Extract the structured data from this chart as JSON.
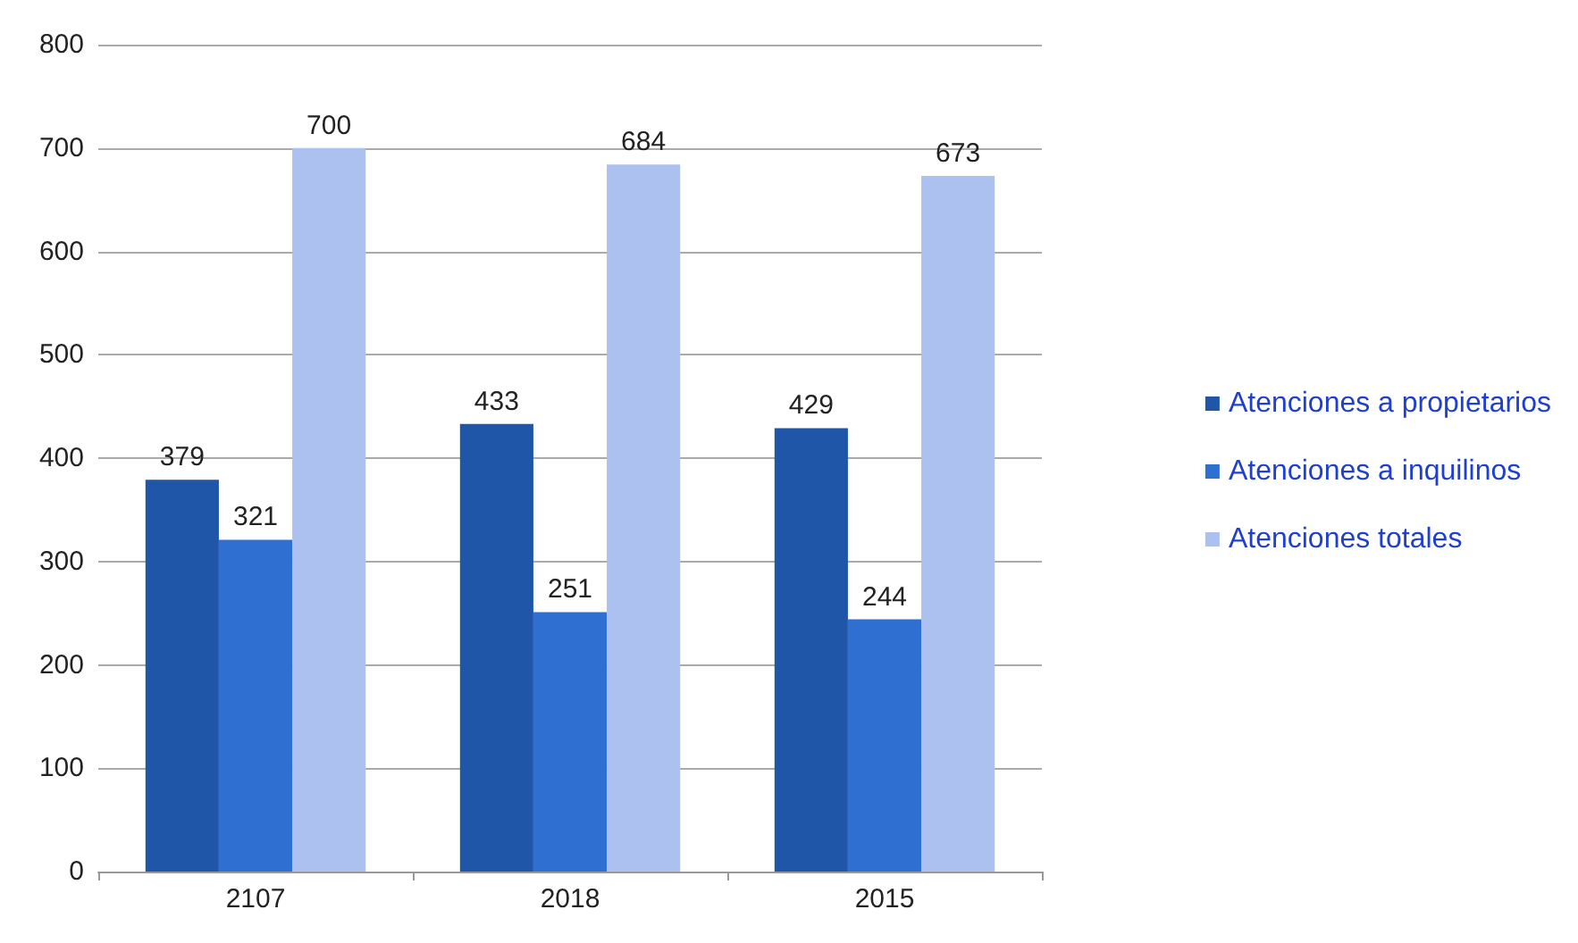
{
  "chart_data": {
    "type": "bar",
    "categories": [
      "2107",
      "2018",
      "2015"
    ],
    "series": [
      {
        "name": "Atenciones a propietarios",
        "color": "#1f56a8",
        "values": [
          379,
          433,
          429
        ]
      },
      {
        "name": "Atenciones a inquilinos",
        "color": "#2e6fd1",
        "values": [
          321,
          251,
          244
        ]
      },
      {
        "name": "Atenciones totales",
        "color": "#adc1f0",
        "values": [
          700,
          684,
          673
        ]
      }
    ],
    "ylim": [
      0,
      800
    ],
    "yticks": [
      0,
      100,
      200,
      300,
      400,
      500,
      600,
      700,
      800
    ],
    "grid": "y",
    "legend": "right",
    "data_labels": true
  }
}
